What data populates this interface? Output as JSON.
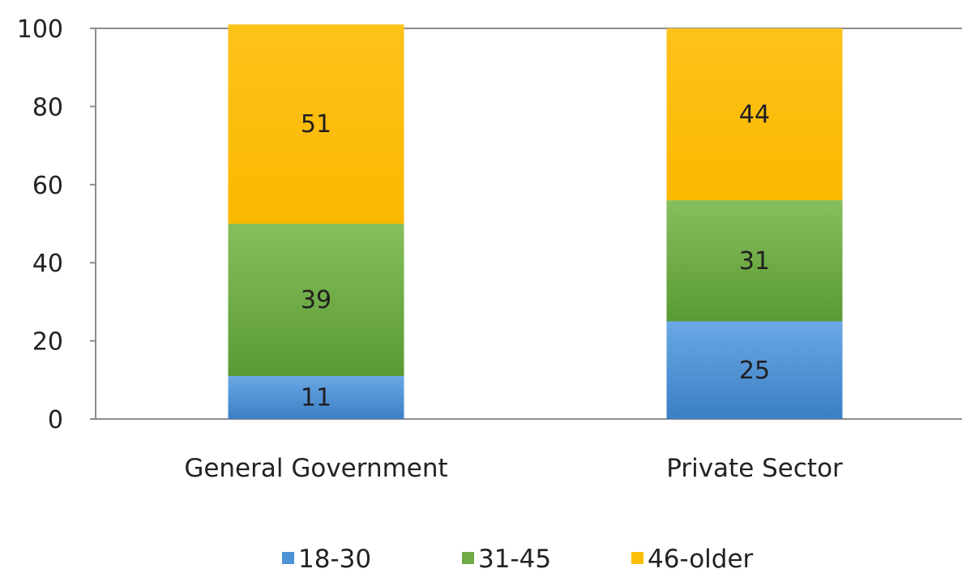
{
  "chart_data": {
    "type": "bar",
    "stacked": true,
    "categories": [
      "General Government",
      "Private Sector"
    ],
    "series": [
      {
        "name": "18-30",
        "values": [
          11,
          25
        ],
        "color": "#4e92d6"
      },
      {
        "name": "31-45",
        "values": [
          39,
          31
        ],
        "color": "#6faa44"
      },
      {
        "name": "46-older",
        "values": [
          51,
          44
        ],
        "color": "#fbbf0a"
      }
    ],
    "ylim": [
      0,
      100
    ],
    "yticks": [
      "0",
      "20",
      "40",
      "60",
      "80",
      "100"
    ],
    "grid": false,
    "legend": "bottom"
  }
}
